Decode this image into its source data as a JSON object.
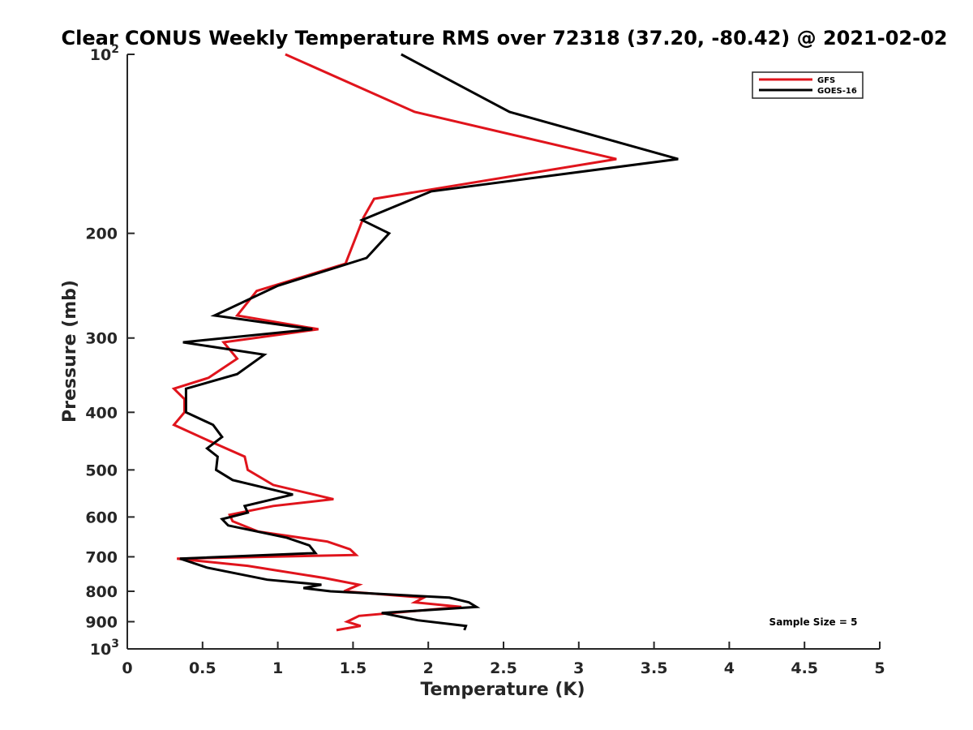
{
  "chart_data": {
    "type": "line",
    "title": "Clear CONUS Weekly Temperature RMS over 72318 (37.20, -80.42) @ 2021-02-02",
    "xlabel": "Temperature (K)",
    "ylabel": "Pressure (mb)",
    "xlim": [
      0,
      5
    ],
    "ylim": [
      100,
      1000
    ],
    "y_scale": "log",
    "y_reversed": true,
    "x_ticks": [
      "0",
      "0.5",
      "1",
      "1.5",
      "2",
      "2.5",
      "3",
      "3.5",
      "4",
      "4.5",
      "5"
    ],
    "y_ticks": [
      {
        "value": 100,
        "base": "10",
        "exp": "2"
      },
      {
        "value": 200,
        "label": "200"
      },
      {
        "value": 300,
        "label": "300"
      },
      {
        "value": 400,
        "label": "400"
      },
      {
        "value": 500,
        "label": "500"
      },
      {
        "value": 600,
        "label": "600"
      },
      {
        "value": 700,
        "label": "700"
      },
      {
        "value": 800,
        "label": "800"
      },
      {
        "value": 900,
        "label": "900"
      },
      {
        "value": 1000,
        "base": "10",
        "exp": "3"
      }
    ],
    "grid": false,
    "legend_position": "top-right",
    "annotation": "Sample Size = 5",
    "series": [
      {
        "name": "GFS",
        "color": "#e0141c",
        "points": [
          [
            1.05,
            100
          ],
          [
            1.91,
            125
          ],
          [
            3.25,
            150
          ],
          [
            1.64,
            175
          ],
          [
            1.57,
            188
          ],
          [
            1.45,
            225
          ],
          [
            0.86,
            250
          ],
          [
            0.73,
            275
          ],
          [
            1.27,
            290
          ],
          [
            0.64,
            305
          ],
          [
            0.73,
            325
          ],
          [
            0.54,
            350
          ],
          [
            0.31,
            365
          ],
          [
            0.38,
            380
          ],
          [
            0.38,
            400
          ],
          [
            0.31,
            420
          ],
          [
            0.57,
            450
          ],
          [
            0.78,
            475
          ],
          [
            0.8,
            500
          ],
          [
            0.97,
            530
          ],
          [
            1.37,
            560
          ],
          [
            0.97,
            575
          ],
          [
            0.68,
            595
          ],
          [
            0.7,
            610
          ],
          [
            0.87,
            635
          ],
          [
            1.33,
            660
          ],
          [
            1.48,
            680
          ],
          [
            1.52,
            695
          ],
          [
            0.33,
            705
          ],
          [
            0.8,
            725
          ],
          [
            1.31,
            760
          ],
          [
            1.54,
            780
          ],
          [
            1.44,
            800
          ],
          [
            1.97,
            820
          ],
          [
            1.91,
            835
          ],
          [
            2.22,
            850
          ],
          [
            1.54,
            880
          ],
          [
            1.46,
            900
          ],
          [
            1.55,
            915
          ],
          [
            1.39,
            930
          ]
        ]
      },
      {
        "name": "GOES-16",
        "color": "#000000",
        "points": [
          [
            1.82,
            100
          ],
          [
            2.54,
            125
          ],
          [
            3.66,
            150
          ],
          [
            2.02,
            170
          ],
          [
            1.56,
            190
          ],
          [
            1.74,
            200
          ],
          [
            1.59,
            220
          ],
          [
            1.0,
            245
          ],
          [
            0.58,
            275
          ],
          [
            1.23,
            290
          ],
          [
            0.37,
            305
          ],
          [
            0.91,
            320
          ],
          [
            0.73,
            345
          ],
          [
            0.39,
            365
          ],
          [
            0.39,
            400
          ],
          [
            0.57,
            420
          ],
          [
            0.63,
            440
          ],
          [
            0.53,
            460
          ],
          [
            0.6,
            475
          ],
          [
            0.59,
            500
          ],
          [
            0.7,
            520
          ],
          [
            1.1,
            550
          ],
          [
            0.78,
            575
          ],
          [
            0.8,
            590
          ],
          [
            0.63,
            605
          ],
          [
            0.67,
            620
          ],
          [
            1.06,
            650
          ],
          [
            1.21,
            670
          ],
          [
            1.25,
            690
          ],
          [
            0.35,
            705
          ],
          [
            0.53,
            730
          ],
          [
            0.93,
            765
          ],
          [
            1.29,
            780
          ],
          [
            1.17,
            790
          ],
          [
            1.35,
            800
          ],
          [
            2.14,
            820
          ],
          [
            2.27,
            835
          ],
          [
            2.32,
            850
          ],
          [
            1.69,
            870
          ],
          [
            1.93,
            895
          ],
          [
            2.25,
            915
          ],
          [
            2.24,
            930
          ]
        ]
      }
    ]
  }
}
